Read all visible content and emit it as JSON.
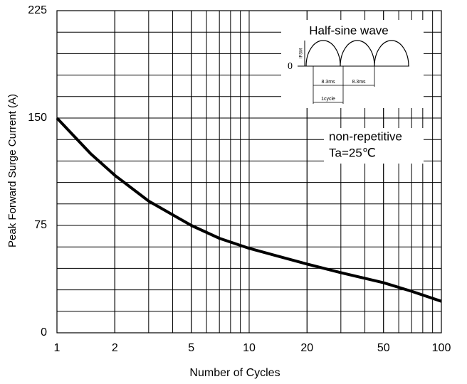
{
  "chart_data": {
    "type": "line",
    "x_label": "Number of Cycles",
    "y_label": "Peak Forward Surge Current (A)",
    "x_scale": "log",
    "xlim": [
      1,
      100
    ],
    "xticks": [
      1,
      2,
      5,
      10,
      20,
      50,
      100
    ],
    "ylim": [
      0,
      225
    ],
    "yticks": [
      0,
      75,
      150,
      225
    ],
    "grid": true,
    "series": [
      {
        "name": "IFSM",
        "color": "#000000",
        "x": [
          1,
          1.5,
          2,
          3,
          5,
          7,
          10,
          20,
          30,
          50,
          70,
          100
        ],
        "values": [
          150,
          125,
          110,
          92,
          75,
          66,
          59,
          48,
          42,
          35,
          29,
          22
        ]
      }
    ],
    "annotations": {
      "inset_title": "Half-sine wave",
      "zero": "0",
      "ifsm": "IFSM",
      "period_1": "8.3ms",
      "period_2": "8.3ms",
      "cycle": "1cycle",
      "condition_1": "non-repetitive",
      "condition_2": "Ta=25℃"
    }
  }
}
